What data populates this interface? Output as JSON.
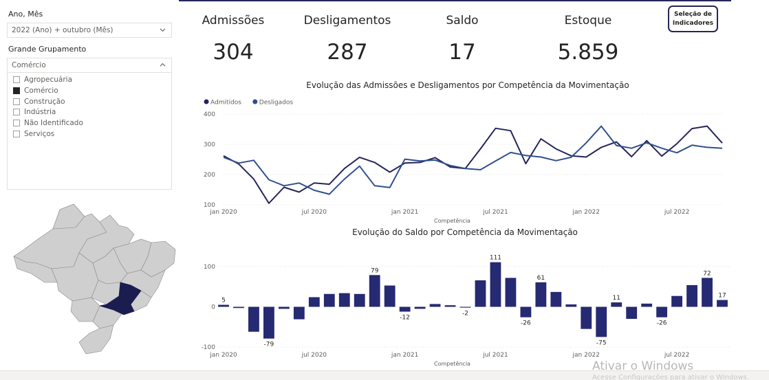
{
  "slicers": {
    "period_label": "Ano, Mês",
    "period_value": "2022 (Ano) + outubro (Mês)",
    "group_label": "Grande Grupamento",
    "group_value": "Comércio",
    "group_options": [
      {
        "label": "Agropecuária",
        "checked": false
      },
      {
        "label": "Comércio",
        "checked": true
      },
      {
        "label": "Construção",
        "checked": false
      },
      {
        "label": "Indústria",
        "checked": false
      },
      {
        "label": "Não Identificado",
        "checked": false
      },
      {
        "label": "Serviços",
        "checked": false
      }
    ]
  },
  "kpis": {
    "admissoes_label": "Admissões",
    "admissoes_value": "304",
    "desligamentos_label": "Desligamentos",
    "desligamentos_value": "287",
    "saldo_label": "Saldo",
    "saldo_value": "17",
    "estoque_label": "Estoque",
    "estoque_value": "5.859"
  },
  "selection_button": {
    "line1": "Seleção de",
    "line2": "Indicadores"
  },
  "map": {
    "highlight_color": "#1b1c4f",
    "base_color": "#cfcfcf"
  },
  "colors": {
    "admitidos": "#252459",
    "desligados": "#2e4f8f",
    "saldo_bar": "#252a72"
  },
  "watermark": {
    "line1": "Ativar o Windows",
    "line2": "Acesse Configurações para ativar o Windows."
  },
  "chart_data": [
    {
      "type": "line",
      "title": "Evolução das Admissões e Desligamentos por Competência da Movimentação",
      "xlabel": "Competência",
      "ylabel": "",
      "ylim": [
        100,
        400
      ],
      "yticks": [
        100,
        200,
        300,
        400
      ],
      "x_tick_labels": [
        {
          "label": "jan 2020",
          "index": 0
        },
        {
          "label": "jul 2020",
          "index": 6
        },
        {
          "label": "jan 2021",
          "index": 12
        },
        {
          "label": "jul 2021",
          "index": 18
        },
        {
          "label": "jan 2022",
          "index": 24
        },
        {
          "label": "jul 2022",
          "index": 30
        }
      ],
      "legend_position": "top-left",
      "series": [
        {
          "name": "Admitidos",
          "values": [
            262,
            235,
            185,
            105,
            158,
            142,
            172,
            168,
            220,
            257,
            240,
            208,
            238,
            240,
            256,
            225,
            220,
            285,
            353,
            345,
            236,
            318,
            285,
            262,
            258,
            290,
            308,
            259,
            312,
            261,
            302,
            352,
            360,
            304
          ]
        },
        {
          "name": "Desligados",
          "values": [
            257,
            238,
            247,
            183,
            163,
            172,
            148,
            135,
            185,
            228,
            163,
            157,
            251,
            245,
            248,
            230,
            220,
            216,
            245,
            273,
            263,
            258,
            246,
            257,
            305,
            360,
            296,
            287,
            305,
            287,
            272,
            297,
            290,
            287
          ]
        }
      ]
    },
    {
      "type": "bar",
      "title": "Evolução do Saldo por Competência da Movimentação",
      "xlabel": "Competência",
      "ylabel": "",
      "ylim": [
        -100,
        100
      ],
      "yticks": [
        -100,
        0,
        100
      ],
      "x_tick_labels": [
        {
          "label": "jan 2020",
          "index": 0
        },
        {
          "label": "jul 2020",
          "index": 6
        },
        {
          "label": "jan 2021",
          "index": 12
        },
        {
          "label": "jul 2021",
          "index": 18
        },
        {
          "label": "jan 2022",
          "index": 24
        },
        {
          "label": "jul 2022",
          "index": 30
        }
      ],
      "values": [
        5,
        -3,
        -62,
        -79,
        -5,
        -31,
        24,
        32,
        34,
        32,
        79,
        53,
        -12,
        -5,
        7,
        4,
        -2,
        66,
        111,
        72,
        -26,
        61,
        37,
        6,
        -55,
        -75,
        11,
        -30,
        8,
        -26,
        27,
        54,
        72,
        17
      ],
      "data_labels": [
        {
          "index": 0,
          "text": "5"
        },
        {
          "index": 3,
          "text": "-79"
        },
        {
          "index": 10,
          "text": "79"
        },
        {
          "index": 12,
          "text": "-12"
        },
        {
          "index": 16,
          "text": "-2"
        },
        {
          "index": 18,
          "text": "111"
        },
        {
          "index": 20,
          "text": "-26"
        },
        {
          "index": 21,
          "text": "61"
        },
        {
          "index": 25,
          "text": "-75"
        },
        {
          "index": 26,
          "text": "11"
        },
        {
          "index": 29,
          "text": "-26"
        },
        {
          "index": 32,
          "text": "72"
        },
        {
          "index": 33,
          "text": "17"
        }
      ]
    }
  ]
}
